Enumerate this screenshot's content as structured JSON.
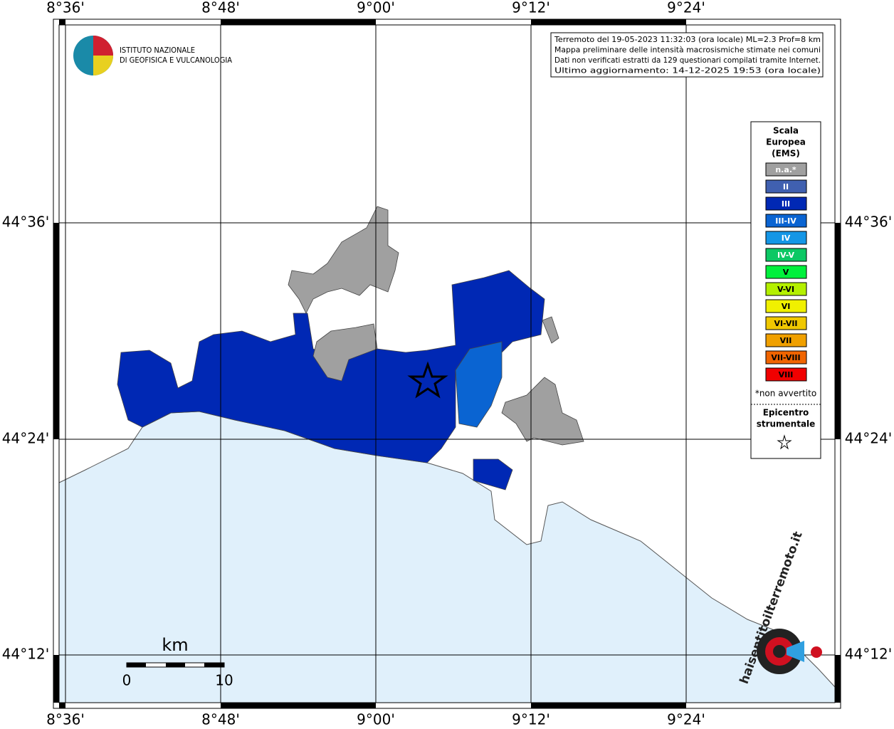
{
  "map": {
    "lon_labels": [
      "8°36'",
      "8°48'",
      "9°00'",
      "9°12'",
      "9°24'"
    ],
    "lat_labels": [
      "44°36'",
      "44°24'",
      "44°12'"
    ],
    "logo": [
      "ISTITUTO NAZIONALE",
      "DI GEOFISICA E VULCANOLOGIA"
    ],
    "info_box": [
      "Terremoto del 19-05-2023 11:32:03 (ora locale) ML=2.3 Prof=8 km",
      "Mappa preliminare delle intensità macrosismiche stimate nei comuni",
      "Dati non verificati estratti da 129 questionari compilati tramite Internet.",
      "Ultimo aggiornamento: 14-12-2025 19:53 (ora locale)"
    ],
    "legend": {
      "title": [
        "Scala",
        "Europea",
        "(EMS)"
      ],
      "items": [
        {
          "label": "n.a.*",
          "color": "#a0a0a0"
        },
        {
          "label": "II",
          "color": "#4060b0"
        },
        {
          "label": "III",
          "color": "#0028b4"
        },
        {
          "label": "III-IV",
          "color": "#0a64d2"
        },
        {
          "label": "IV",
          "color": "#1496e6"
        },
        {
          "label": "IV-V",
          "color": "#0cc864"
        },
        {
          "label": "V",
          "color": "#00f03c"
        },
        {
          "label": "V-VI",
          "color": "#b4f000"
        },
        {
          "label": "VI",
          "color": "#f0f000"
        },
        {
          "label": "VI-VII",
          "color": "#f0c800"
        },
        {
          "label": "VII",
          "color": "#f0a000"
        },
        {
          "label": "VII-VIII",
          "color": "#f06400"
        },
        {
          "label": "VIII",
          "color": "#f00000"
        }
      ],
      "note": "*non avvertito",
      "epicenter": [
        "Epicentro",
        "strumentale"
      ]
    },
    "scale": {
      "unit": "km",
      "ticks": [
        "0",
        "10"
      ]
    },
    "site_logo": "haisentitoilterremoto.it"
  }
}
